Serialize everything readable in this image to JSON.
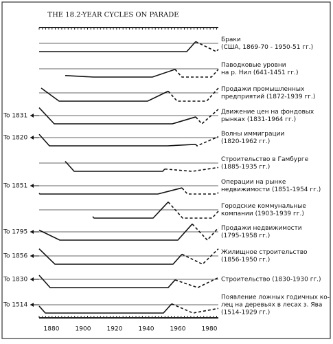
{
  "title": "THE 18.2-YEAR CYCLES ON PARADE",
  "rows": [
    {
      "label": [
        "Браки",
        "(США, 1869-70 - 1950-51 гг.)"
      ]
    },
    {
      "label": [
        "Паводковые уровни",
        "на р. Нил (641-1451 гг.)"
      ]
    },
    {
      "label": [
        "Продажи промышленных",
        "предприятий (1872-1939 гг.)"
      ]
    },
    {
      "left": "To 1831",
      "label": [
        "Движение цен на фондовых",
        "рынках (1831-1964 гг.)"
      ]
    },
    {
      "left": "To 1820",
      "label": [
        "Волны иммиграции",
        "(1820-1962 гг.)"
      ]
    },
    {
      "label": [
        "Строительство в Гамбурге",
        "(1885-1935 гг.)"
      ]
    },
    {
      "left": "To 1851",
      "label": [
        "Операции на рынке",
        "недвижимости (1851-1954 гг.)"
      ]
    },
    {
      "label": [
        "Городские коммунальные",
        "компании (1903-1939 гг.)"
      ]
    },
    {
      "left": "To 1795",
      "label": [
        "Продажи недвижимости",
        "(1795-1958 гг.)"
      ]
    },
    {
      "left": "To 1856",
      "label": [
        "Жилищное строительство",
        "(1856-1950 гг.)"
      ]
    },
    {
      "left": "To 1830",
      "label": [
        "Строительство (1830-1930 гг.)"
      ]
    },
    {
      "left": "To 1514",
      "label": [
        "Появление ложных годичных ко-",
        "лец на деревьях в лесах з. Ява",
        "(1514-1929 гг.)"
      ]
    }
  ],
  "x_axis": {
    "ticks": [
      "1880",
      "1900",
      "1920",
      "1940",
      "1960",
      "1980"
    ]
  }
}
